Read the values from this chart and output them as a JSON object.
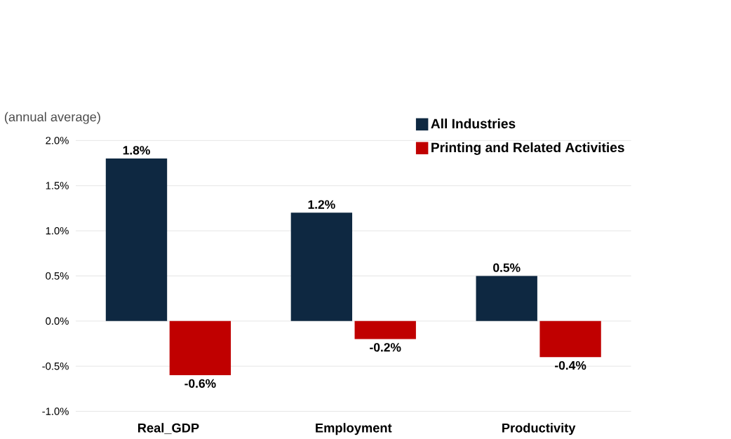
{
  "chart_data": {
    "type": "bar",
    "ylabel": "(annual average)",
    "categories": [
      "Real_GDP",
      "Employment",
      "Productivity"
    ],
    "series": [
      {
        "name": "All Industries",
        "color": "#0e2841",
        "values": [
          1.8,
          1.2,
          0.5
        ],
        "value_labels": [
          "1.8%",
          "1.2%",
          "0.5%"
        ]
      },
      {
        "name": "Printing and Related Activities",
        "color": "#c00000",
        "values": [
          -0.6,
          -0.2,
          -0.4
        ],
        "value_labels": [
          "-0.6%",
          "-0.2%",
          "-0.4%"
        ]
      }
    ],
    "ylim": [
      -1.0,
      2.0
    ],
    "yticks": [
      {
        "value": -1.0,
        "label": "-1.0%"
      },
      {
        "value": -0.5,
        "label": "-0.5%"
      },
      {
        "value": 0.0,
        "label": "0.0%"
      },
      {
        "value": 0.5,
        "label": "0.5%"
      },
      {
        "value": 1.0,
        "label": "1.0%"
      },
      {
        "value": 1.5,
        "label": "1.5%"
      },
      {
        "value": 2.0,
        "label": "2.0%"
      }
    ],
    "grid": "y",
    "legend": "top right"
  }
}
